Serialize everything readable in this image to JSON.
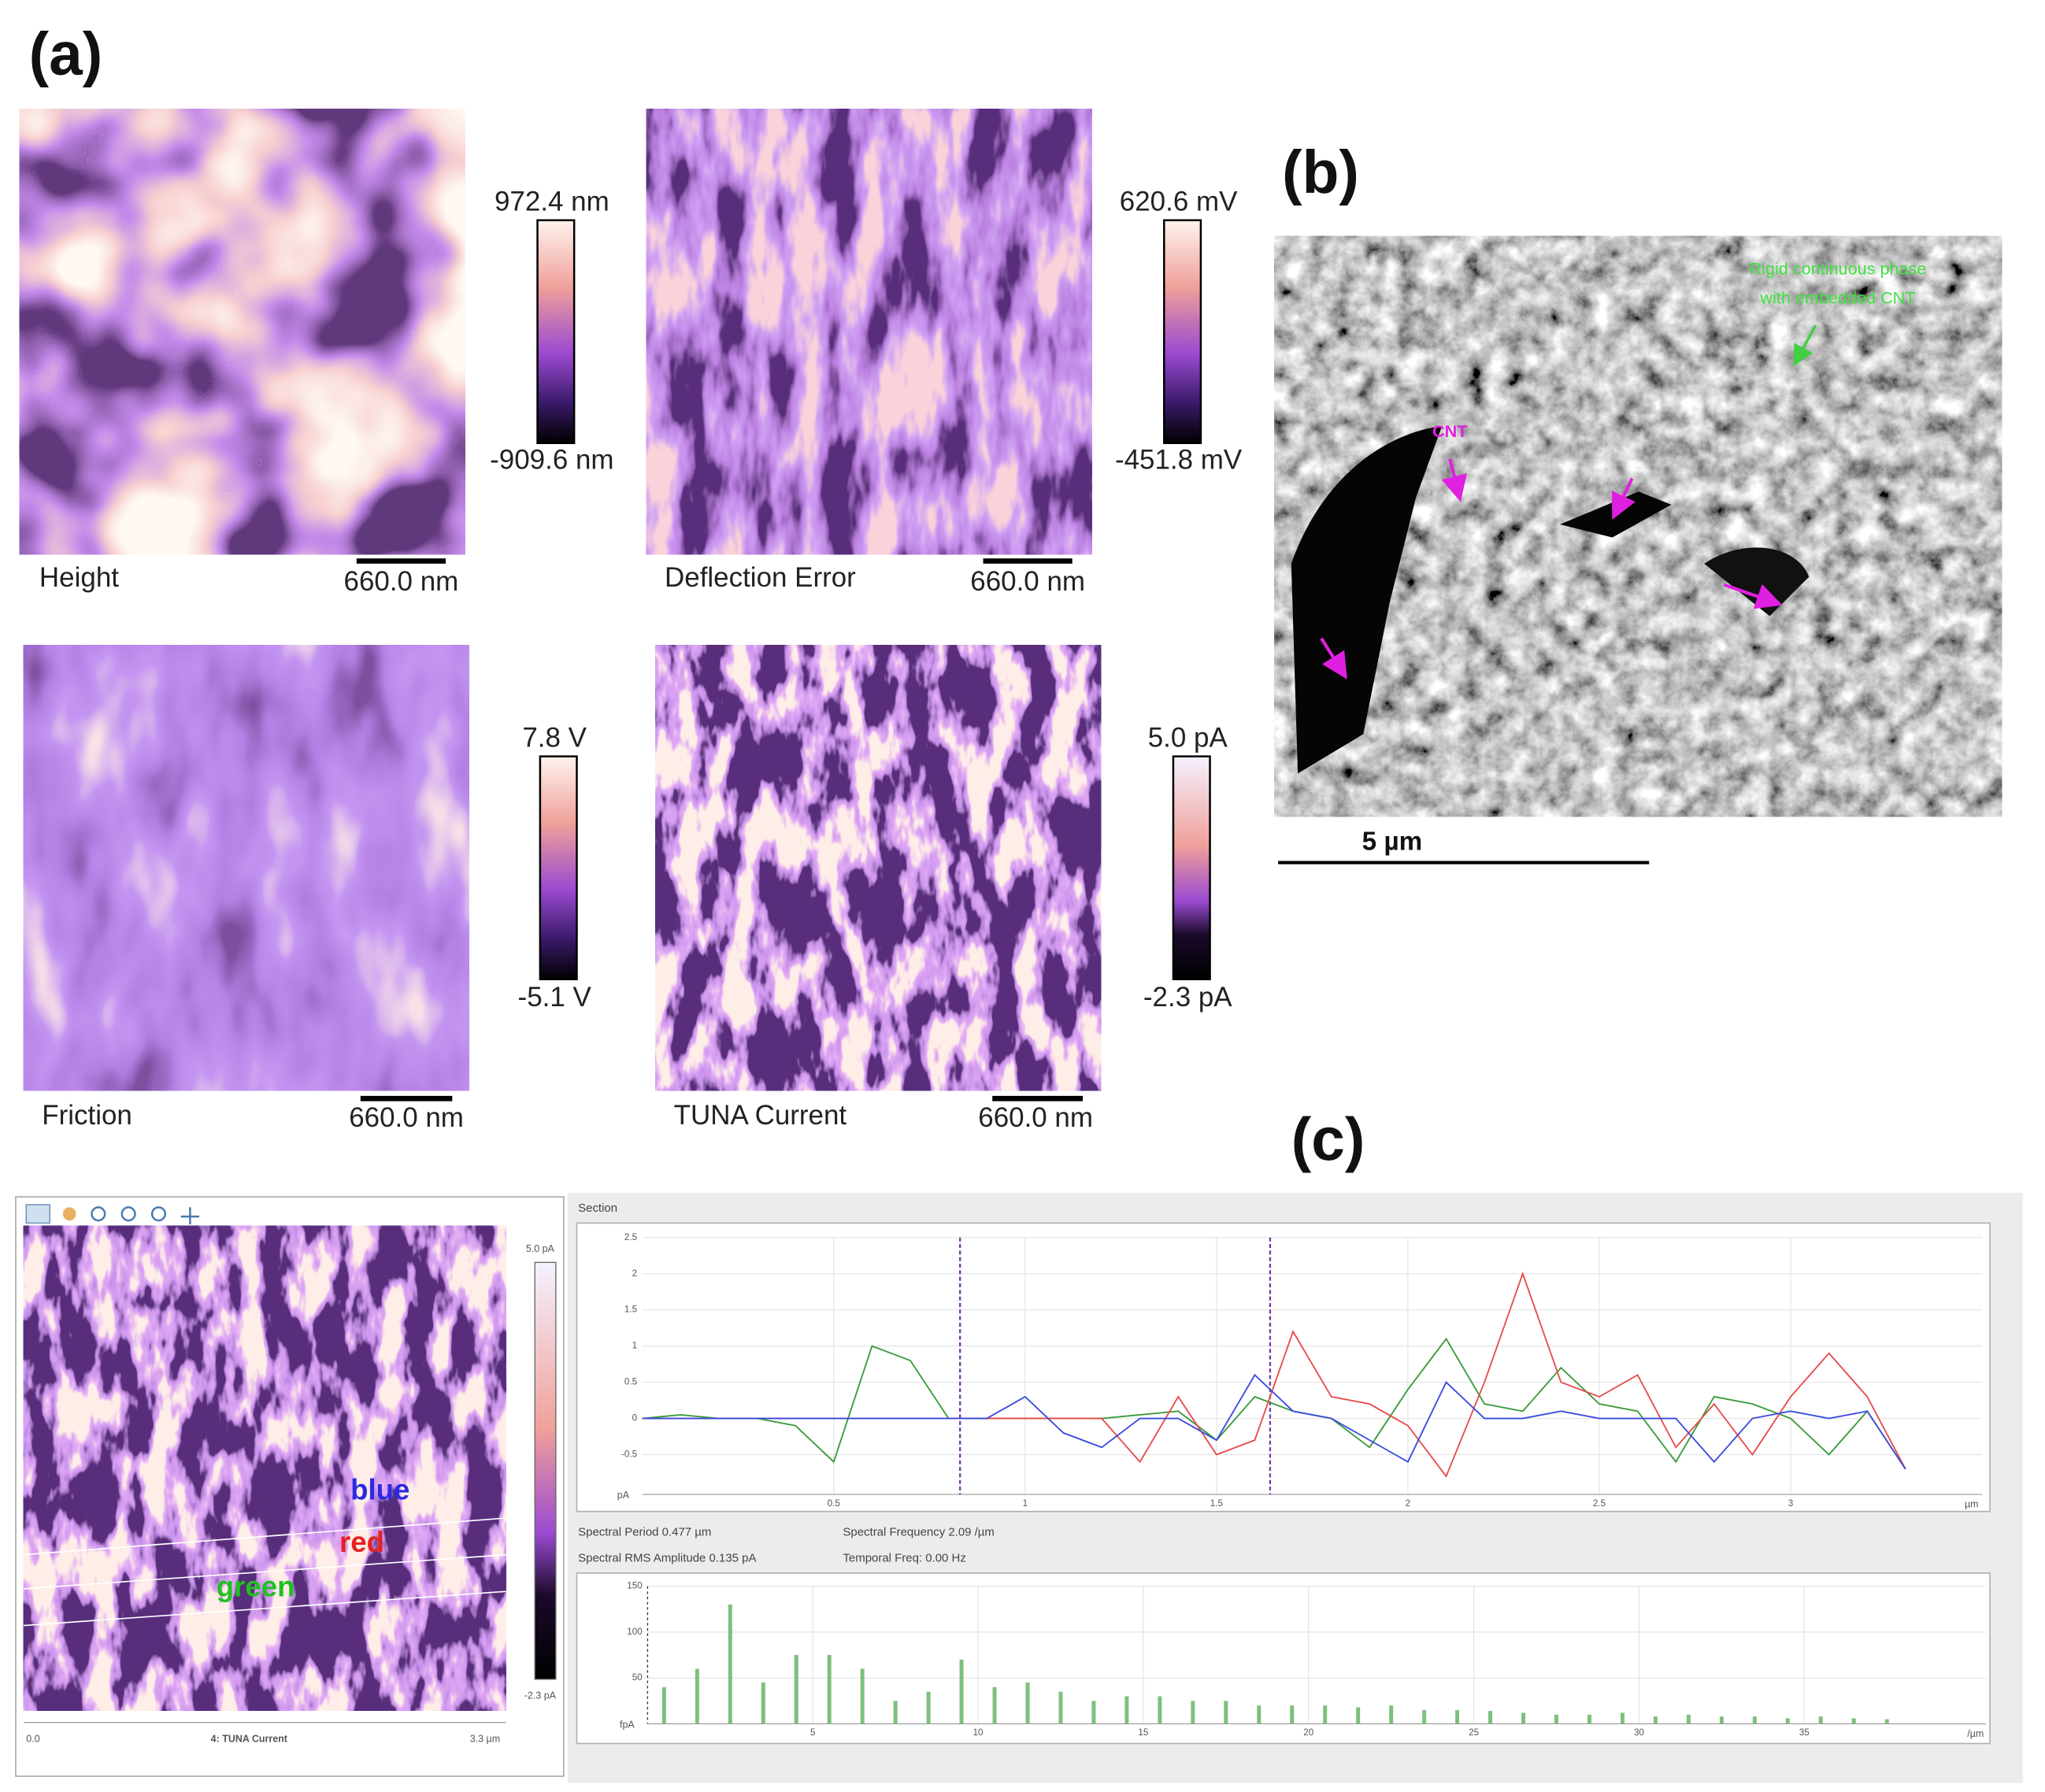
{
  "panels": {
    "a": {
      "label": "(a)",
      "images": [
        {
          "name": "Height",
          "max": "972.4 nm",
          "min": "-909.6 nm",
          "scale": "660.0 nm"
        },
        {
          "name": "Deflection Error",
          "max": "620.6 mV",
          "min": "-451.8 mV",
          "scale": "660.0 nm"
        },
        {
          "name": "Friction",
          "max": "7.8 V",
          "min": "-5.1 V",
          "scale": "660.0 nm"
        },
        {
          "name": "TUNA Current",
          "max": "5.0 pA",
          "min": "-2.3 pA",
          "scale": "660.0 nm"
        }
      ]
    },
    "b": {
      "label": "(b)",
      "annotation": [
        "Rigid continuous phase",
        "with embedded CNT"
      ],
      "cnt_label": "CNT",
      "scale": "5 µm"
    },
    "c": {
      "label": "(c)",
      "map": {
        "max": "5.0 pA",
        "min": "-2.3 pA",
        "x_start": "0.0",
        "title": "4: TUNA Current",
        "x_end": "3.3 µm",
        "line_labels": [
          "blue",
          "red",
          "green"
        ]
      },
      "section_title": "Section",
      "readouts": [
        "Spectral Period 0.477 µm",
        "Spectral Frequency 2.09 /µm",
        "Spectral RMS Amplitude 0.135 pA",
        "Temporal Freq: 0.00 Hz"
      ]
    }
  },
  "chart_data": [
    {
      "type": "line",
      "x": [
        0,
        0.1,
        0.2,
        0.3,
        0.4,
        0.5,
        0.6,
        0.7,
        0.8,
        0.9,
        1.0,
        1.1,
        1.2,
        1.3,
        1.4,
        1.5,
        1.6,
        1.7,
        1.8,
        1.9,
        2.0,
        2.1,
        2.2,
        2.3,
        2.4,
        2.5,
        2.6,
        2.7,
        2.8,
        2.9,
        3.0,
        3.1,
        3.2,
        3.3
      ],
      "series": [
        {
          "name": "green",
          "color": "#3a9a3a",
          "values": [
            0,
            0.05,
            0,
            0,
            -0.1,
            -0.6,
            1.0,
            0.8,
            0,
            0,
            0,
            0,
            0,
            0.05,
            0.1,
            -0.3,
            0.3,
            0.1,
            0,
            -0.4,
            0.4,
            1.1,
            0.2,
            0.1,
            0.7,
            0.2,
            0.1,
            -0.6,
            0.3,
            0.2,
            0,
            -0.5,
            0.1,
            -0.7
          ]
        },
        {
          "name": "red",
          "color": "#e84a4a",
          "values": [
            0,
            0,
            0,
            0,
            0,
            0,
            0,
            0,
            0,
            0,
            0,
            0,
            0,
            -0.6,
            0.3,
            -0.5,
            -0.3,
            1.2,
            0.3,
            0.2,
            -0.1,
            -0.8,
            0.5,
            2.0,
            0.5,
            0.3,
            0.6,
            -0.4,
            0.2,
            -0.5,
            0.3,
            0.9,
            0.3,
            -0.7
          ]
        },
        {
          "name": "blue",
          "color": "#3a4ae0",
          "values": [
            0,
            0,
            0,
            0,
            0,
            0,
            0,
            0,
            0,
            0,
            0.3,
            -0.2,
            -0.4,
            0,
            0,
            -0.3,
            0.6,
            0.1,
            0,
            -0.3,
            -0.6,
            0.5,
            0,
            0,
            0.1,
            0,
            0,
            0,
            -0.6,
            0,
            0.1,
            0,
            0.1,
            -0.7
          ]
        }
      ],
      "xlim": [
        0,
        3.5
      ],
      "ylim": [
        -1.05,
        2.5
      ],
      "xticks": [
        0.5,
        1,
        1.5,
        2,
        2.5,
        3
      ],
      "yticks": [
        -0.5,
        0,
        0.5,
        1,
        1.5,
        2,
        2.5
      ],
      "x_label": "µm",
      "y_label": "pA",
      "cursors": [
        0.83,
        1.64
      ],
      "grid": true
    },
    {
      "type": "bar",
      "x": [
        0.5,
        1.5,
        2.5,
        3.5,
        4.5,
        5.5,
        6.5,
        7.5,
        8.5,
        9.5,
        10.5,
        11.5,
        12.5,
        13.5,
        14.5,
        15.5,
        16.5,
        17.5,
        18.5,
        19.5,
        20.5,
        21.5,
        22.5,
        23.5,
        24.5,
        25.5,
        26.5,
        27.5,
        28.5,
        29.5,
        30.5,
        31.5,
        32.5,
        33.5,
        34.5,
        35.5,
        36.5,
        37.5
      ],
      "values": [
        40,
        60,
        130,
        45,
        75,
        75,
        60,
        25,
        35,
        70,
        40,
        45,
        35,
        25,
        30,
        30,
        25,
        25,
        20,
        20,
        20,
        18,
        20,
        15,
        15,
        14,
        12,
        10,
        10,
        12,
        8,
        10,
        8,
        8,
        6,
        8,
        6,
        5
      ],
      "color": "#7cc07c",
      "xlim": [
        0,
        40.5
      ],
      "ylim": [
        0,
        150
      ],
      "xticks": [
        5,
        10,
        15,
        20,
        25,
        30,
        35
      ],
      "yticks": [
        50,
        100,
        150
      ],
      "x_label": "/µm",
      "y_label": "fpA",
      "grid": true
    }
  ]
}
